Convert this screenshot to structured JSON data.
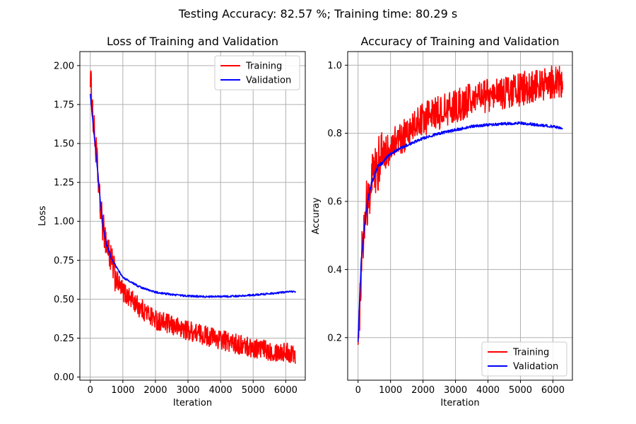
{
  "figure": {
    "suptitle": "Testing Accuracy: 82.57 %; Training time: 80.29 s"
  },
  "chart_data": [
    {
      "type": "line",
      "title": "Loss of Training and Validation",
      "xlabel": "Iteration",
      "ylabel": "Loss",
      "xlim": [
        -320,
        6600
      ],
      "ylim": [
        -0.02,
        2.09
      ],
      "xticks": [
        0,
        1000,
        2000,
        3000,
        4000,
        5000,
        6000
      ],
      "xtick_labels": [
        "0",
        "1000",
        "2000",
        "3000",
        "4000",
        "5000",
        "6000"
      ],
      "yticks": [
        0.0,
        0.25,
        0.5,
        0.75,
        1.0,
        1.25,
        1.5,
        1.75,
        2.0
      ],
      "ytick_labels": [
        "0.00",
        "0.25",
        "0.50",
        "0.75",
        "1.00",
        "1.25",
        "1.50",
        "1.75",
        "2.00"
      ],
      "grid": true,
      "legend": "top-right",
      "series": [
        {
          "name": "Training",
          "color": "#ff0000",
          "noise": 0.065,
          "x": [
            0,
            50,
            100,
            200,
            300,
            400,
            600,
            800,
            1000,
            1500,
            2000,
            2500,
            3000,
            3500,
            4000,
            4500,
            5000,
            5500,
            6000,
            6300
          ],
          "y": [
            1.95,
            1.78,
            1.62,
            1.4,
            1.1,
            0.95,
            0.78,
            0.62,
            0.55,
            0.45,
            0.37,
            0.33,
            0.3,
            0.27,
            0.24,
            0.21,
            0.19,
            0.17,
            0.16,
            0.15
          ]
        },
        {
          "name": "Validation",
          "color": "#0000ff",
          "noise": 0.006,
          "x": [
            0,
            100,
            200,
            300,
            400,
            500,
            700,
            1000,
            1500,
            2000,
            2500,
            3000,
            3500,
            4000,
            4500,
            5000,
            5500,
            6000,
            6300
          ],
          "y": [
            1.82,
            1.6,
            1.38,
            1.15,
            0.96,
            0.85,
            0.74,
            0.64,
            0.58,
            0.545,
            0.53,
            0.52,
            0.517,
            0.517,
            0.52,
            0.527,
            0.535,
            0.545,
            0.55
          ]
        }
      ]
    },
    {
      "type": "line",
      "title": "Accuracy of Training and Validation",
      "xlabel": "Iteration",
      "ylabel": "Accuray",
      "xlim": [
        -320,
        6600
      ],
      "ylim": [
        0.075,
        1.04
      ],
      "xticks": [
        0,
        1000,
        2000,
        3000,
        4000,
        5000,
        6000
      ],
      "xtick_labels": [
        "0",
        "1000",
        "2000",
        "3000",
        "4000",
        "5000",
        "6000"
      ],
      "yticks": [
        0.2,
        0.4,
        0.6,
        0.8,
        1.0
      ],
      "ytick_labels": [
        "0.2",
        "0.4",
        "0.6",
        "0.8",
        "1.0"
      ],
      "grid": true,
      "legend": "bottom-right",
      "series": [
        {
          "name": "Training",
          "color": "#ff0000",
          "noise": 0.05,
          "x": [
            0,
            50,
            100,
            200,
            300,
            500,
            700,
            1000,
            1500,
            2000,
            2500,
            3000,
            3500,
            4000,
            4500,
            5000,
            5500,
            6000,
            6300
          ],
          "y": [
            0.13,
            0.3,
            0.42,
            0.55,
            0.62,
            0.68,
            0.73,
            0.76,
            0.8,
            0.84,
            0.86,
            0.88,
            0.9,
            0.91,
            0.92,
            0.93,
            0.94,
            0.95,
            0.95
          ]
        },
        {
          "name": "Validation",
          "color": "#0000ff",
          "noise": 0.004,
          "x": [
            0,
            50,
            100,
            200,
            300,
            400,
            600,
            800,
            1000,
            1500,
            2000,
            2500,
            3000,
            3500,
            4000,
            4500,
            5000,
            5500,
            6000,
            6300
          ],
          "y": [
            0.19,
            0.32,
            0.43,
            0.53,
            0.6,
            0.65,
            0.7,
            0.72,
            0.74,
            0.765,
            0.785,
            0.8,
            0.81,
            0.82,
            0.825,
            0.828,
            0.83,
            0.825,
            0.82,
            0.815
          ]
        }
      ]
    }
  ]
}
